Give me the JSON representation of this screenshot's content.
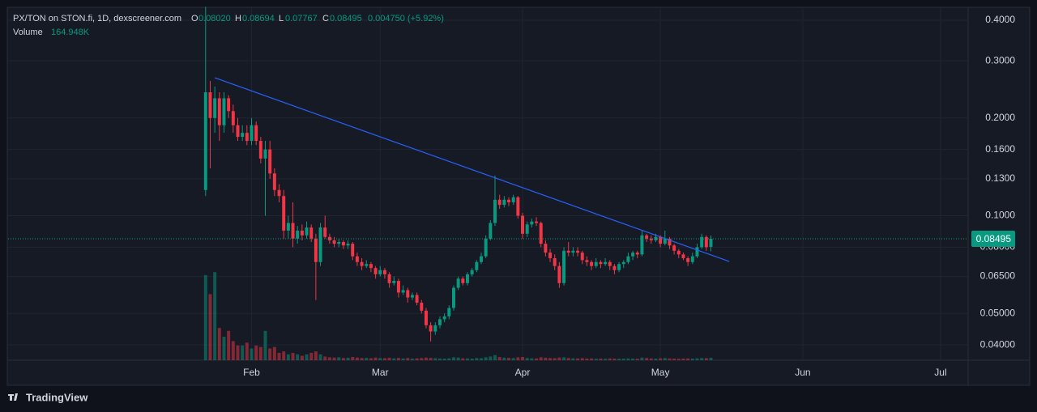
{
  "chart_data": {
    "type": "candlestick",
    "legend": {
      "symbol": "PX/TON on STON.fi, 1D, dexscreener.com",
      "o": "0.08020",
      "h": "0.08694",
      "l": "0.07767",
      "c": "0.08495",
      "change": "0.004750 (+5.92%)",
      "volume_title": "Volume",
      "volume": "164.948K"
    },
    "brand": "TradingView",
    "log_scale": true,
    "grid": true,
    "up_color": "#089981",
    "down_color": "#f23645",
    "trend_color": "#2962ff",
    "xlim": [
      -43,
      166
    ],
    "ylim": [
      0.0359,
      0.436
    ],
    "volume_lim": [
      0,
      24000000
    ],
    "xticks": [
      {
        "value": 10,
        "label": "Feb"
      },
      {
        "value": 38,
        "label": "Mar"
      },
      {
        "value": 69,
        "label": "Apr"
      },
      {
        "value": 99,
        "label": "May"
      },
      {
        "value": 130,
        "label": "Jun"
      },
      {
        "value": 160,
        "label": "Jul"
      }
    ],
    "yticks": [
      {
        "value": 0.04,
        "label": "0.04000"
      },
      {
        "value": 0.05,
        "label": "0.05000"
      },
      {
        "value": 0.065,
        "label": "0.06500"
      },
      {
        "value": 0.08,
        "label": "0.08000"
      },
      {
        "value": 0.1,
        "label": "0.1000"
      },
      {
        "value": 0.13,
        "label": "0.1300"
      },
      {
        "value": 0.16,
        "label": "0.1600"
      },
      {
        "value": 0.2,
        "label": "0.2000"
      },
      {
        "value": 0.3,
        "label": "0.3000"
      },
      {
        "value": 0.4,
        "label": "0.4000"
      }
    ],
    "x": [
      0,
      1,
      2,
      3,
      4,
      5,
      6,
      7,
      8,
      9,
      10,
      11,
      12,
      13,
      14,
      15,
      16,
      17,
      18,
      19,
      20,
      21,
      22,
      23,
      24,
      25,
      26,
      27,
      28,
      29,
      30,
      31,
      32,
      33,
      34,
      35,
      36,
      37,
      38,
      39,
      40,
      41,
      42,
      43,
      44,
      45,
      46,
      47,
      48,
      49,
      50,
      51,
      52,
      53,
      54,
      55,
      56,
      57,
      58,
      59,
      60,
      61,
      62,
      63,
      64,
      65,
      66,
      67,
      68,
      69,
      70,
      71,
      72,
      73,
      74,
      75,
      76,
      77,
      78,
      79,
      80,
      81,
      82,
      83,
      84,
      85,
      86,
      87,
      88,
      89,
      90,
      91,
      92,
      93,
      94,
      95,
      96,
      97,
      98,
      99,
      100,
      101,
      102,
      103,
      104,
      105,
      106,
      107,
      108,
      109,
      110
    ],
    "ohlc": [
      [
        0.12,
        0.44,
        0.115,
        0.24
      ],
      [
        0.24,
        0.26,
        0.14,
        0.2
      ],
      [
        0.2,
        0.25,
        0.18,
        0.23
      ],
      [
        0.23,
        0.24,
        0.17,
        0.19
      ],
      [
        0.19,
        0.24,
        0.18,
        0.23
      ],
      [
        0.23,
        0.235,
        0.2,
        0.21
      ],
      [
        0.21,
        0.22,
        0.18,
        0.19
      ],
      [
        0.19,
        0.2,
        0.17,
        0.175
      ],
      [
        0.175,
        0.19,
        0.17,
        0.18
      ],
      [
        0.18,
        0.19,
        0.165,
        0.17
      ],
      [
        0.17,
        0.2,
        0.165,
        0.19
      ],
      [
        0.19,
        0.195,
        0.165,
        0.17
      ],
      [
        0.17,
        0.175,
        0.145,
        0.15
      ],
      [
        0.15,
        0.17,
        0.1,
        0.16
      ],
      [
        0.16,
        0.17,
        0.13,
        0.135
      ],
      [
        0.135,
        0.14,
        0.115,
        0.12
      ],
      [
        0.12,
        0.125,
        0.11,
        0.115
      ],
      [
        0.115,
        0.12,
        0.085,
        0.09
      ],
      [
        0.09,
        0.1,
        0.085,
        0.095
      ],
      [
        0.095,
        0.11,
        0.08,
        0.085
      ],
      [
        0.085,
        0.093,
        0.082,
        0.09
      ],
      [
        0.09,
        0.094,
        0.084,
        0.087
      ],
      [
        0.087,
        0.096,
        0.085,
        0.092
      ],
      [
        0.092,
        0.094,
        0.083,
        0.085
      ],
      [
        0.085,
        0.088,
        0.055,
        0.072
      ],
      [
        0.072,
        0.095,
        0.07,
        0.092
      ],
      [
        0.092,
        0.1,
        0.085,
        0.086
      ],
      [
        0.086,
        0.088,
        0.082,
        0.084
      ],
      [
        0.084,
        0.086,
        0.08,
        0.082
      ],
      [
        0.082,
        0.085,
        0.08,
        0.083
      ],
      [
        0.083,
        0.084,
        0.079,
        0.081
      ],
      [
        0.081,
        0.084,
        0.079,
        0.082
      ],
      [
        0.082,
        0.083,
        0.073,
        0.075
      ],
      [
        0.075,
        0.077,
        0.07,
        0.072
      ],
      [
        0.072,
        0.074,
        0.068,
        0.07
      ],
      [
        0.07,
        0.073,
        0.069,
        0.071
      ],
      [
        0.071,
        0.072,
        0.067,
        0.069
      ],
      [
        0.069,
        0.07,
        0.064,
        0.066
      ],
      [
        0.066,
        0.07,
        0.065,
        0.068
      ],
      [
        0.068,
        0.069,
        0.064,
        0.066
      ],
      [
        0.066,
        0.067,
        0.06,
        0.062
      ],
      [
        0.062,
        0.065,
        0.061,
        0.063
      ],
      [
        0.063,
        0.064,
        0.056,
        0.058
      ],
      [
        0.058,
        0.061,
        0.057,
        0.059
      ],
      [
        0.059,
        0.06,
        0.054,
        0.056
      ],
      [
        0.056,
        0.058,
        0.055,
        0.057
      ],
      [
        0.057,
        0.058,
        0.053,
        0.054
      ],
      [
        0.054,
        0.055,
        0.05,
        0.051
      ],
      [
        0.051,
        0.052,
        0.045,
        0.046
      ],
      [
        0.046,
        0.047,
        0.041,
        0.044
      ],
      [
        0.044,
        0.047,
        0.043,
        0.046
      ],
      [
        0.046,
        0.049,
        0.045,
        0.048
      ],
      [
        0.048,
        0.05,
        0.047,
        0.049
      ],
      [
        0.049,
        0.053,
        0.048,
        0.052
      ],
      [
        0.052,
        0.061,
        0.051,
        0.06
      ],
      [
        0.06,
        0.065,
        0.059,
        0.064
      ],
      [
        0.064,
        0.065,
        0.061,
        0.062
      ],
      [
        0.062,
        0.067,
        0.061,
        0.066
      ],
      [
        0.066,
        0.069,
        0.065,
        0.068
      ],
      [
        0.068,
        0.073,
        0.067,
        0.072
      ],
      [
        0.072,
        0.077,
        0.071,
        0.075
      ],
      [
        0.075,
        0.087,
        0.074,
        0.085
      ],
      [
        0.085,
        0.097,
        0.084,
        0.095
      ],
      [
        0.095,
        0.133,
        0.093,
        0.112
      ],
      [
        0.112,
        0.116,
        0.105,
        0.108
      ],
      [
        0.108,
        0.115,
        0.106,
        0.112
      ],
      [
        0.112,
        0.114,
        0.107,
        0.11
      ],
      [
        0.11,
        0.116,
        0.108,
        0.114
      ],
      [
        0.114,
        0.115,
        0.098,
        0.1
      ],
      [
        0.1,
        0.102,
        0.085,
        0.088
      ],
      [
        0.088,
        0.096,
        0.086,
        0.094
      ],
      [
        0.094,
        0.098,
        0.092,
        0.096
      ],
      [
        0.096,
        0.099,
        0.093,
        0.095
      ],
      [
        0.095,
        0.096,
        0.08,
        0.082
      ],
      [
        0.082,
        0.084,
        0.075,
        0.077
      ],
      [
        0.077,
        0.079,
        0.072,
        0.074
      ],
      [
        0.074,
        0.076,
        0.068,
        0.07
      ],
      [
        0.07,
        0.072,
        0.06,
        0.062
      ],
      [
        0.062,
        0.08,
        0.061,
        0.078
      ],
      [
        0.078,
        0.083,
        0.075,
        0.077
      ],
      [
        0.077,
        0.08,
        0.075,
        0.078
      ],
      [
        0.078,
        0.08,
        0.075,
        0.077
      ],
      [
        0.077,
        0.078,
        0.071,
        0.073
      ],
      [
        0.073,
        0.075,
        0.07,
        0.072
      ],
      [
        0.072,
        0.073,
        0.068,
        0.07
      ],
      [
        0.07,
        0.074,
        0.069,
        0.072
      ],
      [
        0.072,
        0.073,
        0.069,
        0.071
      ],
      [
        0.071,
        0.074,
        0.07,
        0.072
      ],
      [
        0.072,
        0.073,
        0.068,
        0.07
      ],
      [
        0.07,
        0.071,
        0.066,
        0.068
      ],
      [
        0.068,
        0.072,
        0.067,
        0.071
      ],
      [
        0.071,
        0.073,
        0.069,
        0.072
      ],
      [
        0.072,
        0.077,
        0.071,
        0.075
      ],
      [
        0.075,
        0.078,
        0.073,
        0.077
      ],
      [
        0.077,
        0.078,
        0.074,
        0.076
      ],
      [
        0.076,
        0.09,
        0.075,
        0.087
      ],
      [
        0.087,
        0.088,
        0.083,
        0.085
      ],
      [
        0.085,
        0.087,
        0.082,
        0.084
      ],
      [
        0.084,
        0.088,
        0.083,
        0.086
      ],
      [
        0.086,
        0.087,
        0.08,
        0.082
      ],
      [
        0.082,
        0.09,
        0.081,
        0.085
      ],
      [
        0.085,
        0.086,
        0.079,
        0.081
      ],
      [
        0.081,
        0.082,
        0.076,
        0.078
      ],
      [
        0.078,
        0.079,
        0.074,
        0.076
      ],
      [
        0.076,
        0.077,
        0.073,
        0.074
      ],
      [
        0.074,
        0.075,
        0.07,
        0.072
      ],
      [
        0.072,
        0.077,
        0.071,
        0.075
      ],
      [
        0.075,
        0.082,
        0.074,
        0.08
      ],
      [
        0.08,
        0.088,
        0.079,
        0.086
      ],
      [
        0.086,
        0.087,
        0.078,
        0.08
      ],
      [
        0.0802,
        0.08694,
        0.07767,
        0.08495
      ]
    ],
    "volume": [
      5800000,
      4500000,
      6000000,
      2200000,
      1600000,
      2000000,
      1300000,
      1000000,
      1000000,
      1200000,
      800000,
      1000000,
      900000,
      2000000,
      800000,
      900000,
      500000,
      600000,
      400000,
      500000,
      400000,
      300000,
      400000,
      500000,
      600000,
      400000,
      250000,
      200000,
      180000,
      200000,
      150000,
      170000,
      220000,
      180000,
      150000,
      160000,
      140000,
      180000,
      150000,
      140000,
      170000,
      130000,
      160000,
      120000,
      150000,
      110000,
      130000,
      150000,
      180000,
      160000,
      140000,
      120000,
      110000,
      130000,
      200000,
      180000,
      130000,
      120000,
      110000,
      150000,
      140000,
      200000,
      250000,
      350000,
      220000,
      180000,
      160000,
      150000,
      200000,
      220000,
      150000,
      130000,
      120000,
      200000,
      170000,
      150000,
      140000,
      180000,
      200000,
      150000,
      130000,
      120000,
      140000,
      110000,
      120000,
      100000,
      110000,
      100000,
      120000,
      110000,
      100000,
      110000,
      120000,
      110000,
      100000,
      180000,
      150000,
      120000,
      110000,
      130000,
      150000,
      120000,
      110000,
      100000,
      110000,
      120000,
      110000,
      130000,
      150000,
      140000,
      164948
    ],
    "trendline": {
      "x": [
        2,
        114
      ],
      "y": [
        0.266,
        0.0723
      ]
    }
  }
}
